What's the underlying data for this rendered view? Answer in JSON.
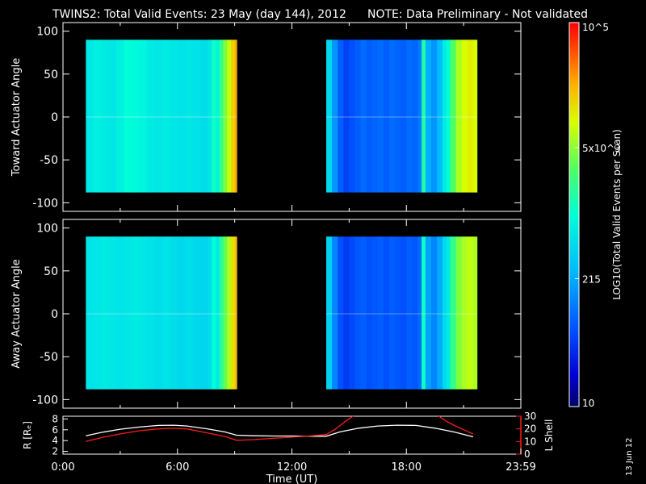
{
  "header": {
    "title": "TWINS2: Total Valid Events: 23 May (day 144), 2012",
    "note": "NOTE: Data Preliminary - Not validated"
  },
  "colors": {
    "background": "#000000",
    "note": "#ff2a2a",
    "axis": "#ffffff",
    "r_line": "#ffffff",
    "l_shell_line": "#ff1a1a"
  },
  "stamp": "13 Jun 12",
  "chart_data": [
    {
      "type": "heatmap",
      "ylabel": "Toward Actuator Angle",
      "xlim": [
        0,
        24
      ],
      "ylim": [
        -110,
        110
      ],
      "yticks": [
        100,
        50,
        0,
        -50,
        -100
      ],
      "y_extent": [
        -88,
        90
      ],
      "blocks": [
        {
          "x_start": 1.2,
          "x_end": 9.1,
          "columns": [
            [
              1.2,
              0.45
            ],
            [
              1.6,
              0.47
            ],
            [
              2.0,
              0.46
            ],
            [
              2.4,
              0.45
            ],
            [
              2.8,
              0.47
            ],
            [
              3.2,
              0.5
            ],
            [
              3.6,
              0.49
            ],
            [
              4.0,
              0.48
            ],
            [
              4.4,
              0.46
            ],
            [
              4.8,
              0.45
            ],
            [
              5.2,
              0.46
            ],
            [
              5.6,
              0.45
            ],
            [
              6.0,
              0.44
            ],
            [
              6.4,
              0.45
            ],
            [
              6.8,
              0.44
            ],
            [
              7.2,
              0.43
            ],
            [
              7.6,
              0.45
            ],
            [
              7.8,
              0.52
            ],
            [
              8.0,
              0.48
            ],
            [
              8.2,
              0.58
            ],
            [
              8.4,
              0.66
            ],
            [
              8.6,
              0.72
            ],
            [
              8.8,
              0.8
            ],
            [
              9.0,
              0.84
            ]
          ]
        },
        {
          "x_start": 13.8,
          "x_end": 21.7,
          "columns": [
            [
              13.8,
              0.42
            ],
            [
              14.1,
              0.3
            ],
            [
              14.4,
              0.22
            ],
            [
              14.7,
              0.18
            ],
            [
              15.0,
              0.2
            ],
            [
              15.3,
              0.22
            ],
            [
              15.6,
              0.24
            ],
            [
              15.9,
              0.22
            ],
            [
              16.2,
              0.23
            ],
            [
              16.5,
              0.24
            ],
            [
              16.8,
              0.22
            ],
            [
              17.1,
              0.24
            ],
            [
              17.4,
              0.23
            ],
            [
              17.7,
              0.22
            ],
            [
              18.0,
              0.24
            ],
            [
              18.3,
              0.23
            ],
            [
              18.6,
              0.26
            ],
            [
              18.8,
              0.55
            ],
            [
              19.0,
              0.34
            ],
            [
              19.3,
              0.3
            ],
            [
              19.6,
              0.36
            ],
            [
              19.9,
              0.46
            ],
            [
              20.1,
              0.5
            ],
            [
              20.3,
              0.62
            ],
            [
              20.6,
              0.7
            ],
            [
              20.9,
              0.74
            ],
            [
              21.2,
              0.76
            ],
            [
              21.5,
              0.74
            ]
          ]
        }
      ]
    },
    {
      "type": "heatmap",
      "ylabel": "Away Actuator Angle",
      "xlim": [
        0,
        24
      ],
      "ylim": [
        -110,
        110
      ],
      "yticks": [
        100,
        50,
        0,
        -50,
        -100
      ],
      "y_extent": [
        -88,
        90
      ],
      "blocks": [
        {
          "x_start": 1.2,
          "x_end": 9.1,
          "columns": [
            [
              1.2,
              0.44
            ],
            [
              1.6,
              0.45
            ],
            [
              2.0,
              0.46
            ],
            [
              2.4,
              0.45
            ],
            [
              2.8,
              0.44
            ],
            [
              3.2,
              0.45
            ],
            [
              3.6,
              0.46
            ],
            [
              4.0,
              0.45
            ],
            [
              4.4,
              0.44
            ],
            [
              4.8,
              0.43
            ],
            [
              5.2,
              0.44
            ],
            [
              5.6,
              0.43
            ],
            [
              6.0,
              0.42
            ],
            [
              6.4,
              0.43
            ],
            [
              6.8,
              0.42
            ],
            [
              7.2,
              0.41
            ],
            [
              7.6,
              0.43
            ],
            [
              7.8,
              0.5
            ],
            [
              8.0,
              0.46
            ],
            [
              8.2,
              0.56
            ],
            [
              8.4,
              0.64
            ],
            [
              8.6,
              0.7
            ],
            [
              8.8,
              0.78
            ],
            [
              9.0,
              0.82
            ]
          ]
        },
        {
          "x_start": 13.8,
          "x_end": 21.7,
          "columns": [
            [
              13.8,
              0.4
            ],
            [
              14.1,
              0.28
            ],
            [
              14.4,
              0.2
            ],
            [
              14.7,
              0.17
            ],
            [
              15.0,
              0.19
            ],
            [
              15.3,
              0.21
            ],
            [
              15.6,
              0.22
            ],
            [
              15.9,
              0.2
            ],
            [
              16.2,
              0.21
            ],
            [
              16.5,
              0.22
            ],
            [
              16.8,
              0.2
            ],
            [
              17.1,
              0.22
            ],
            [
              17.4,
              0.21
            ],
            [
              17.7,
              0.2
            ],
            [
              18.0,
              0.22
            ],
            [
              18.3,
              0.21
            ],
            [
              18.6,
              0.24
            ],
            [
              18.8,
              0.52
            ],
            [
              19.0,
              0.32
            ],
            [
              19.3,
              0.28
            ],
            [
              19.6,
              0.33
            ],
            [
              19.9,
              0.42
            ],
            [
              20.1,
              0.46
            ],
            [
              20.3,
              0.58
            ],
            [
              20.6,
              0.66
            ],
            [
              20.9,
              0.7
            ],
            [
              21.2,
              0.72
            ],
            [
              21.5,
              0.7
            ]
          ]
        }
      ]
    },
    {
      "type": "line",
      "xlabel": "Time (UT)",
      "xlim": [
        0,
        24
      ],
      "xticks": [
        0,
        6,
        12,
        18,
        24
      ],
      "xtick_labels": [
        "0:00",
        "6:00",
        "12:00",
        "18:00",
        "23:59"
      ],
      "left_axis": {
        "ylabel": "R [Rₑ]",
        "ylim": [
          1.5,
          8.5
        ],
        "yticks": [
          8,
          6,
          4,
          2
        ]
      },
      "right_axis": {
        "ylabel": "L Shell",
        "ylim": [
          0,
          30
        ],
        "yticks": [
          30,
          20,
          10,
          0
        ]
      },
      "series": [
        {
          "axis": "left",
          "color": "#ffffff",
          "x": [
            1.2,
            2.0,
            3.0,
            4.0,
            5.0,
            5.8,
            6.5,
            7.5,
            8.5,
            9.1,
            10.0,
            11.0,
            12.0,
            13.0,
            13.8,
            14.5,
            15.5,
            16.5,
            17.5,
            18.5,
            19.5,
            20.5,
            21.5
          ],
          "y": [
            4.9,
            5.5,
            6.1,
            6.5,
            6.8,
            6.85,
            6.7,
            6.2,
            5.6,
            5.0,
            4.9,
            4.85,
            4.85,
            4.8,
            4.8,
            5.6,
            6.3,
            6.7,
            6.85,
            6.8,
            6.3,
            5.6,
            4.7
          ]
        },
        {
          "axis": "right",
          "color": "#ff1a1a",
          "x": [
            1.2,
            2.0,
            3.0,
            4.0,
            5.0,
            5.8,
            6.5,
            7.5,
            8.5,
            9.1,
            10.0,
            11.0,
            12.0,
            13.0,
            13.8,
            14.3,
            14.8,
            15.3,
            19.6,
            20.1,
            20.6,
            21.2,
            21.5
          ],
          "y": [
            10,
            13,
            16,
            18.5,
            20,
            20.5,
            20,
            17,
            14,
            11,
            11.5,
            12.5,
            13.5,
            14.5,
            15.5,
            20,
            26,
            31,
            31,
            26,
            22,
            18,
            16
          ]
        }
      ]
    },
    {
      "type": "colorbar",
      "ylabel": "LOG10(Total Valid Events per Scan)",
      "scale": "log",
      "range": [
        10,
        100000
      ],
      "tick_labels": [
        "10",
        "215",
        "5x10^3",
        "10^5"
      ]
    }
  ]
}
